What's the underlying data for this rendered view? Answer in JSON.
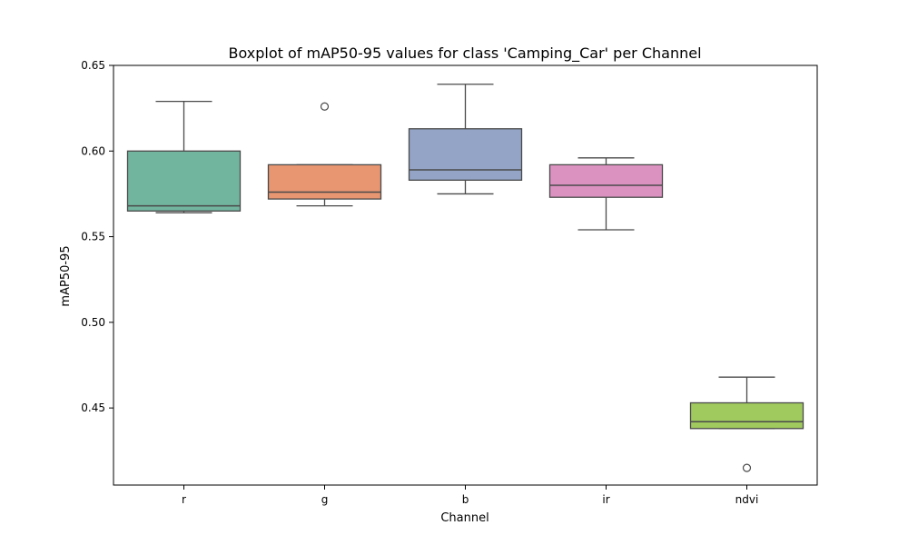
{
  "chart_data": {
    "type": "boxplot",
    "title": "Boxplot of mAP50-95 values for class 'Camping_Car' per Channel",
    "xlabel": "Channel",
    "ylabel": "mAP50-95",
    "ylim": [
      0.405,
      0.65
    ],
    "yticks": [
      "0.45",
      "0.50",
      "0.55",
      "0.60",
      "0.65"
    ],
    "ytick_values": [
      0.45,
      0.5,
      0.55,
      0.6,
      0.65
    ],
    "categories": [
      "r",
      "g",
      "b",
      "ir",
      "ndvi"
    ],
    "colors": [
      "#72b59f",
      "#e89571",
      "#93a4c6",
      "#dc92c1",
      "#a0c95e"
    ],
    "boxes": [
      {
        "name": "r",
        "whisker_low": 0.564,
        "q1": 0.565,
        "median": 0.568,
        "q3": 0.6,
        "whisker_high": 0.629,
        "outliers": []
      },
      {
        "name": "g",
        "whisker_low": 0.568,
        "q1": 0.572,
        "median": 0.576,
        "q3": 0.592,
        "whisker_high": 0.592,
        "outliers": [
          0.626
        ]
      },
      {
        "name": "b",
        "whisker_low": 0.575,
        "q1": 0.583,
        "median": 0.589,
        "q3": 0.613,
        "whisker_high": 0.639,
        "outliers": []
      },
      {
        "name": "ir",
        "whisker_low": 0.554,
        "q1": 0.573,
        "median": 0.58,
        "q3": 0.592,
        "whisker_high": 0.596,
        "outliers": []
      },
      {
        "name": "ndvi",
        "whisker_low": 0.438,
        "q1": 0.438,
        "median": 0.442,
        "q3": 0.453,
        "whisker_high": 0.468,
        "outliers": [
          0.415
        ]
      }
    ],
    "grid": false,
    "legend": "none"
  }
}
